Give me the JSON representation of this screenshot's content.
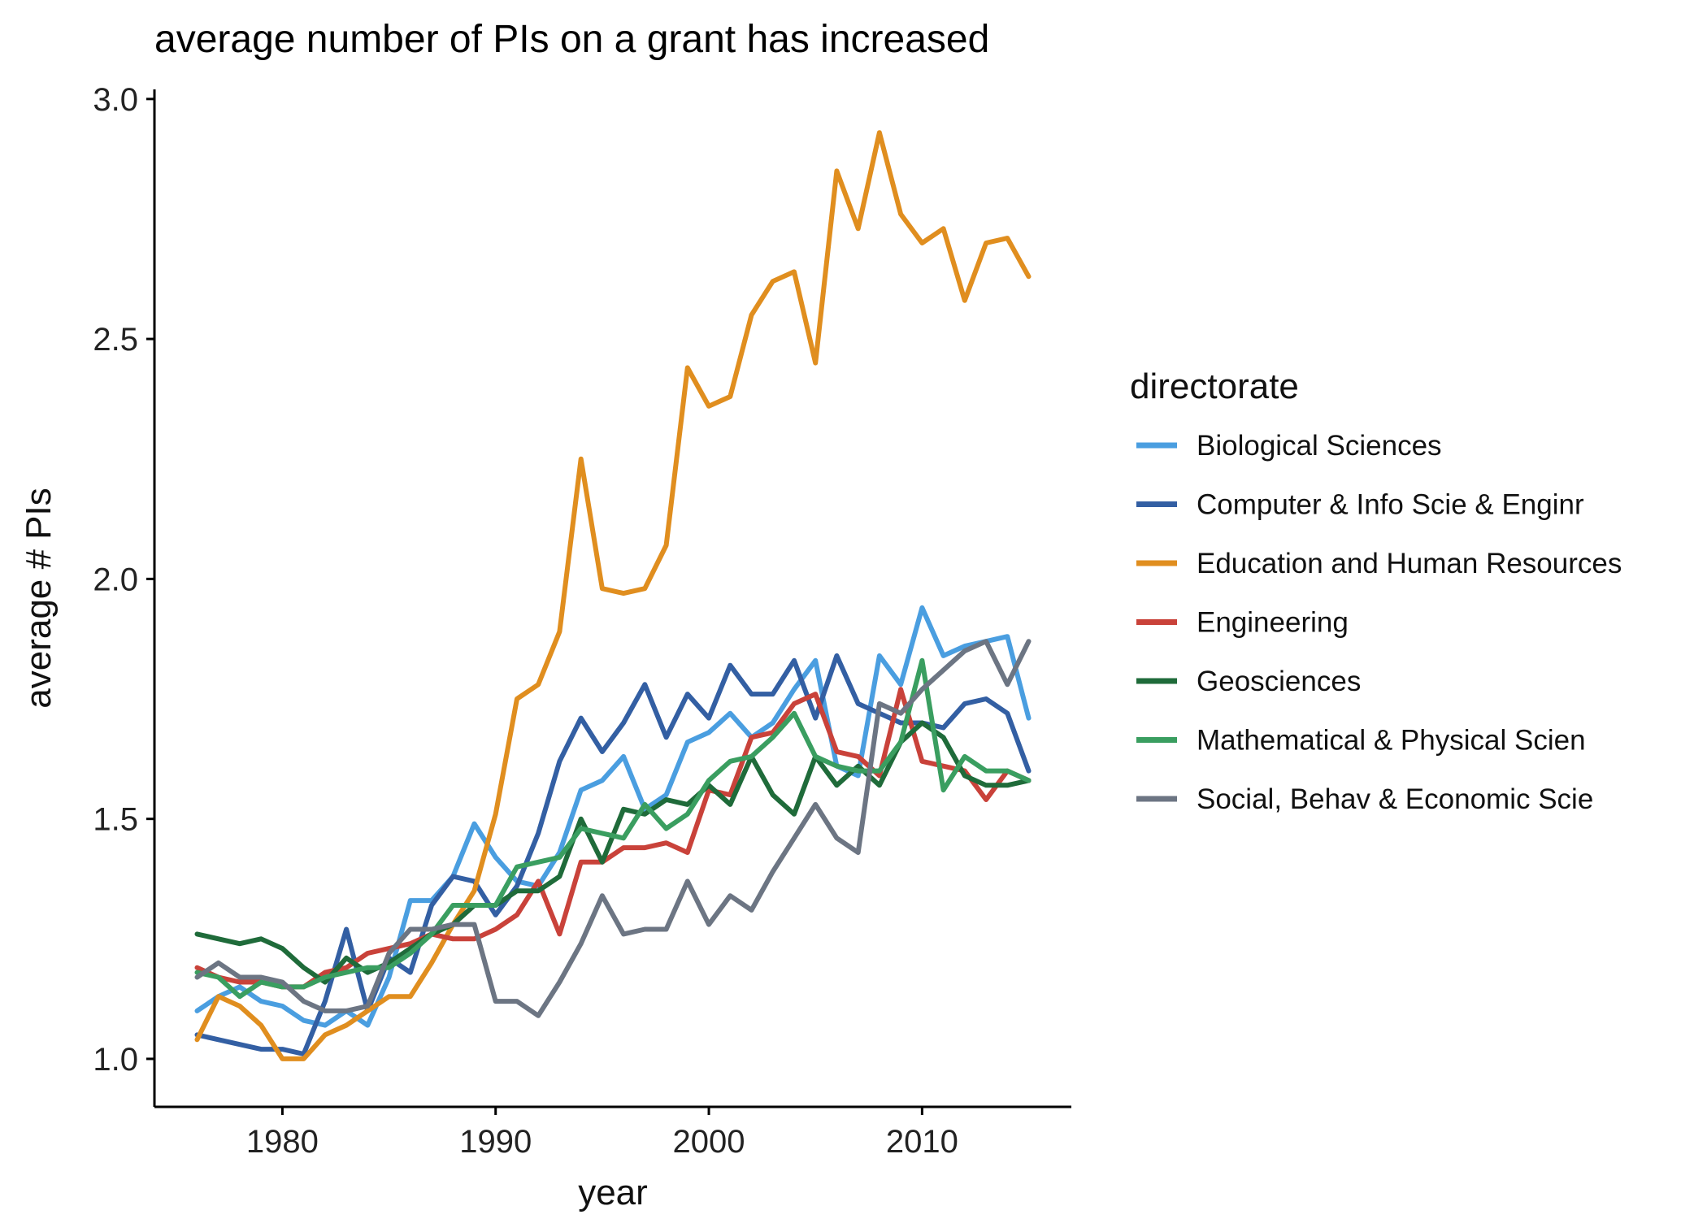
{
  "chart_data": {
    "type": "line",
    "title": "average number of PIs on a grant has increased",
    "xlabel": "year",
    "ylabel": "average # PIs",
    "xlim": [
      1974,
      2017
    ],
    "ylim": [
      0.9,
      3.02
    ],
    "x_ticks": [
      1980,
      1990,
      2000,
      2010
    ],
    "y_ticks": [
      1.0,
      1.5,
      2.0,
      2.5,
      3.0
    ],
    "y_tick_labels": [
      "1.0",
      "1.5",
      "2.0",
      "2.5",
      "3.0"
    ],
    "grid": false,
    "legend": {
      "title": "directorate",
      "position": "right"
    },
    "x": [
      1976,
      1977,
      1978,
      1979,
      1980,
      1981,
      1982,
      1983,
      1984,
      1985,
      1986,
      1987,
      1988,
      1989,
      1990,
      1991,
      1992,
      1993,
      1994,
      1995,
      1996,
      1997,
      1998,
      1999,
      2000,
      2001,
      2002,
      2003,
      2004,
      2005,
      2006,
      2007,
      2008,
      2009,
      2010,
      2011,
      2012,
      2013,
      2014,
      2015
    ],
    "series": [
      {
        "name": "Biological Sciences",
        "color": "#4A9EE0",
        "values": [
          1.1,
          1.13,
          1.15,
          1.12,
          1.11,
          1.08,
          1.07,
          1.1,
          1.07,
          1.17,
          1.33,
          1.33,
          1.38,
          1.49,
          1.42,
          1.37,
          1.36,
          1.43,
          1.56,
          1.58,
          1.63,
          1.52,
          1.55,
          1.66,
          1.68,
          1.72,
          1.67,
          1.7,
          1.77,
          1.83,
          1.61,
          1.59,
          1.84,
          1.78,
          1.94,
          1.84,
          1.86,
          1.87,
          1.88,
          1.71
        ]
      },
      {
        "name": "Computer & Info Scie & Enginr",
        "color": "#335FA3",
        "values": [
          1.05,
          1.04,
          1.03,
          1.02,
          1.02,
          1.01,
          1.12,
          1.27,
          1.1,
          1.21,
          1.18,
          1.32,
          1.38,
          1.37,
          1.3,
          1.36,
          1.47,
          1.62,
          1.71,
          1.64,
          1.7,
          1.78,
          1.67,
          1.76,
          1.71,
          1.82,
          1.76,
          1.76,
          1.83,
          1.71,
          1.84,
          1.74,
          1.72,
          1.7,
          1.7,
          1.69,
          1.74,
          1.75,
          1.72,
          1.6
        ]
      },
      {
        "name": "Education and Human Resources",
        "color": "#E08E1F",
        "values": [
          1.04,
          1.13,
          1.11,
          1.07,
          1.0,
          1.0,
          1.05,
          1.07,
          1.1,
          1.13,
          1.13,
          1.2,
          1.28,
          1.35,
          1.51,
          1.75,
          1.78,
          1.89,
          2.25,
          1.98,
          1.97,
          1.98,
          2.07,
          2.44,
          2.36,
          2.38,
          2.55,
          2.62,
          2.64,
          2.45,
          2.85,
          2.73,
          2.93,
          2.76,
          2.7,
          2.73,
          2.58,
          2.7,
          2.71,
          2.63
        ]
      },
      {
        "name": "Engineering",
        "color": "#C9423A",
        "values": [
          1.19,
          1.17,
          1.16,
          1.16,
          1.15,
          1.15,
          1.18,
          1.19,
          1.22,
          1.23,
          1.24,
          1.26,
          1.25,
          1.25,
          1.27,
          1.3,
          1.37,
          1.26,
          1.41,
          1.41,
          1.44,
          1.44,
          1.45,
          1.43,
          1.56,
          1.55,
          1.67,
          1.68,
          1.74,
          1.76,
          1.64,
          1.63,
          1.59,
          1.77,
          1.62,
          1.61,
          1.6,
          1.54,
          1.6,
          1.58
        ]
      },
      {
        "name": "Geosciences",
        "color": "#1F6B3A",
        "values": [
          1.26,
          1.25,
          1.24,
          1.25,
          1.23,
          1.19,
          1.16,
          1.21,
          1.18,
          1.2,
          1.23,
          1.26,
          1.28,
          1.32,
          1.32,
          1.35,
          1.35,
          1.38,
          1.5,
          1.41,
          1.52,
          1.51,
          1.54,
          1.53,
          1.57,
          1.53,
          1.63,
          1.55,
          1.51,
          1.63,
          1.57,
          1.61,
          1.57,
          1.66,
          1.7,
          1.67,
          1.59,
          1.57,
          1.57,
          1.58
        ]
      },
      {
        "name": "Mathematical & Physical Scien",
        "color": "#3A9E60",
        "values": [
          1.18,
          1.17,
          1.13,
          1.16,
          1.15,
          1.15,
          1.17,
          1.18,
          1.19,
          1.19,
          1.22,
          1.26,
          1.32,
          1.32,
          1.32,
          1.4,
          1.41,
          1.42,
          1.48,
          1.47,
          1.46,
          1.53,
          1.48,
          1.51,
          1.58,
          1.62,
          1.63,
          1.67,
          1.72,
          1.63,
          1.61,
          1.6,
          1.6,
          1.66,
          1.83,
          1.56,
          1.63,
          1.6,
          1.6,
          1.58
        ]
      },
      {
        "name": "Social, Behav & Economic Scie",
        "color": "#6C7583",
        "values": [
          1.17,
          1.2,
          1.17,
          1.17,
          1.16,
          1.12,
          1.1,
          1.1,
          1.11,
          1.22,
          1.27,
          1.27,
          1.28,
          1.28,
          1.12,
          1.12,
          1.09,
          1.16,
          1.24,
          1.34,
          1.26,
          1.27,
          1.27,
          1.37,
          1.28,
          1.34,
          1.31,
          1.39,
          1.46,
          1.53,
          1.46,
          1.43,
          1.74,
          1.72,
          1.77,
          1.81,
          1.85,
          1.87,
          1.78,
          1.87
        ]
      }
    ]
  }
}
